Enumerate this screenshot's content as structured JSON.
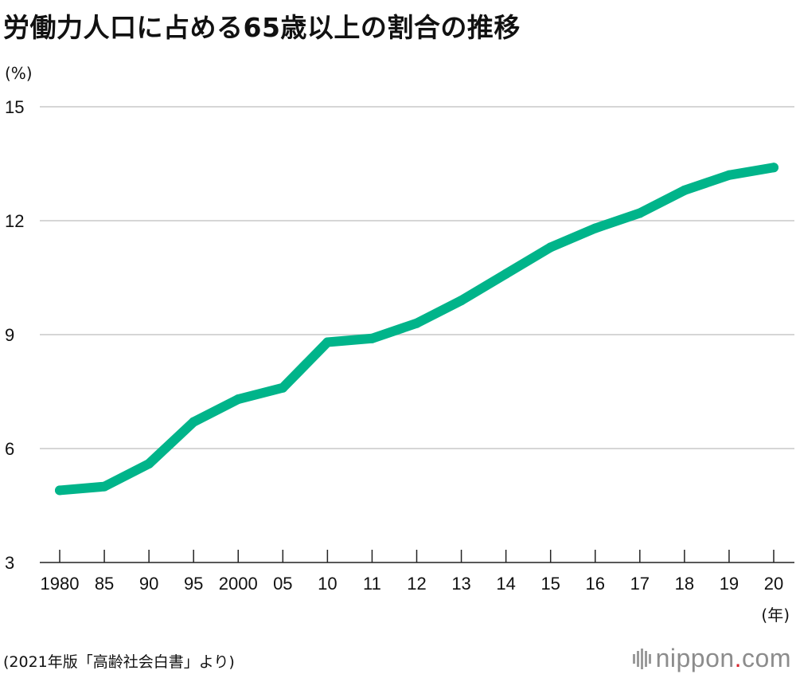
{
  "title": "労働力人口に占める65歳以上の割合の推移",
  "unit_y": "(%)",
  "unit_x": "(年)",
  "source": "(2021年版「高齢社会白書」より)",
  "logo": {
    "main": "nippon",
    "dot": ".",
    "suffix": "com"
  },
  "colors": {
    "line": "#00b48a",
    "grid": "#c8c8c8",
    "axis": "#222222"
  },
  "chart_data": {
    "type": "line",
    "title": "労働力人口に占める65歳以上の割合の推移",
    "ylabel": "(%)",
    "xlabel": "(年)",
    "ylim": [
      3,
      15
    ],
    "yticks": [
      3,
      6,
      9,
      12,
      15
    ],
    "grid": true,
    "categories": [
      "1980",
      "85",
      "90",
      "95",
      "2000",
      "05",
      "10",
      "11",
      "12",
      "13",
      "14",
      "15",
      "16",
      "17",
      "18",
      "19",
      "20"
    ],
    "series": [
      {
        "values": [
          4.9,
          5.0,
          5.6,
          6.7,
          7.3,
          7.6,
          8.8,
          8.9,
          9.3,
          9.9,
          10.6,
          11.3,
          11.8,
          12.2,
          12.8,
          13.2,
          13.4
        ]
      }
    ]
  }
}
